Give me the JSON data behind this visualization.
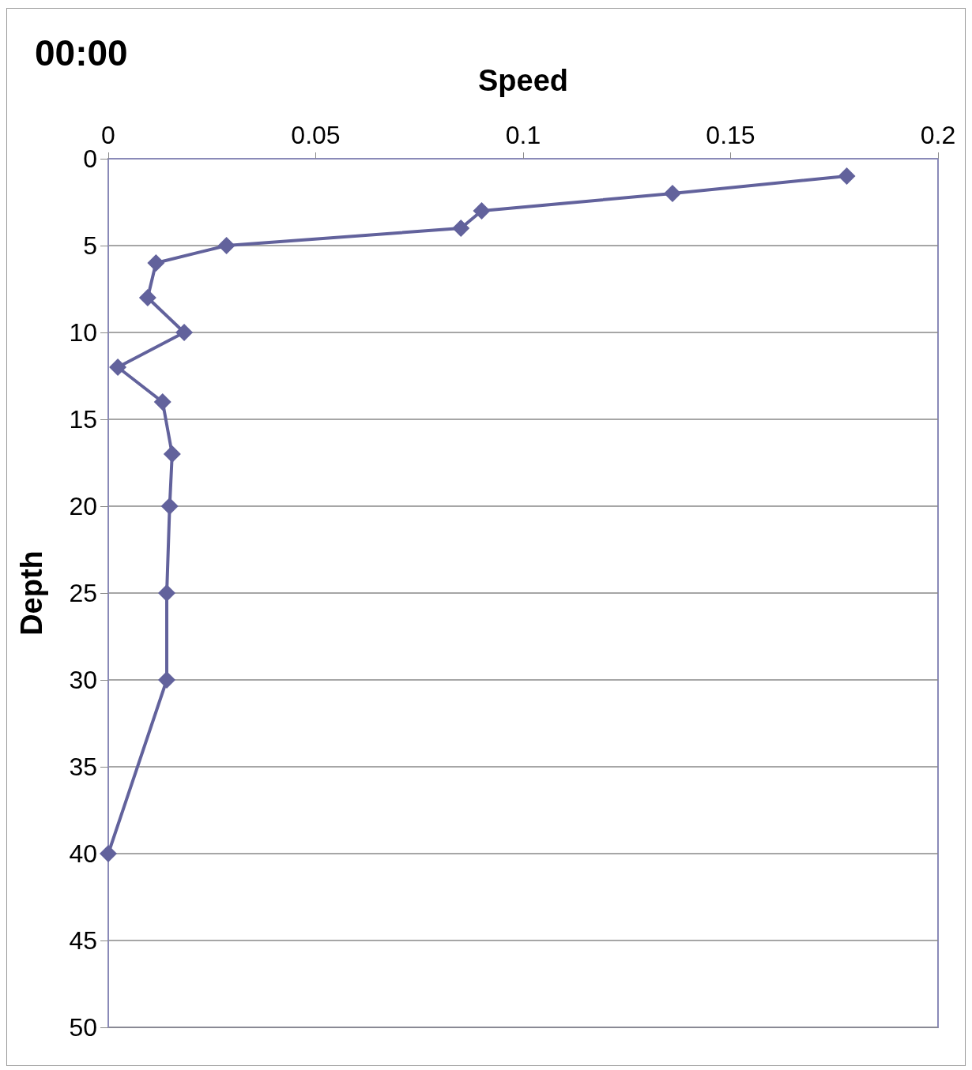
{
  "chart_data": {
    "type": "line",
    "title": "00:00",
    "xlabel": "Speed",
    "ylabel": "Depth",
    "x": [
      0.178,
      0.136,
      0.09,
      0.085,
      0.0285,
      0.0115,
      0.0095,
      0.0183,
      0.0023,
      0.0131,
      0.0154,
      0.0148,
      0.0141,
      0.0141,
      0
    ],
    "series": [
      {
        "color": "#62629c",
        "values": [
          1,
          2,
          3,
          4,
          5,
          6,
          8,
          10,
          12,
          14,
          17,
          20,
          25,
          30,
          40
        ]
      }
    ],
    "xlim": [
      0,
      0.2
    ],
    "xticks": [
      0,
      0.05,
      0.1,
      0.15,
      0.2
    ],
    "ylim": [
      50,
      0
    ],
    "yticks": [
      0,
      5,
      10,
      15,
      20,
      25,
      30,
      35,
      40,
      45,
      50
    ],
    "grid": "y",
    "marker": "diamond",
    "line_style": "solid"
  }
}
